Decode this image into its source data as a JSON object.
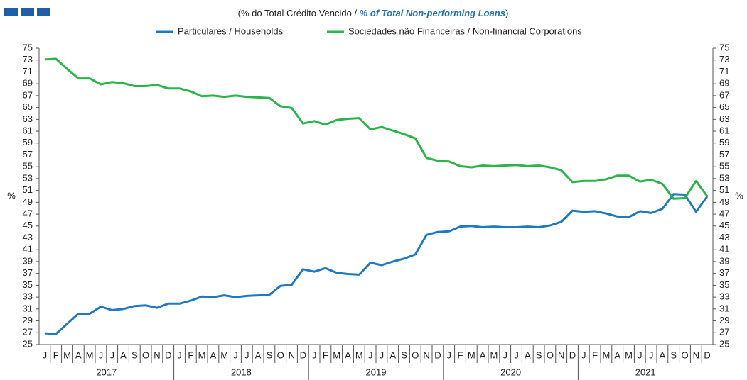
{
  "chart_data": {
    "type": "line",
    "title_parts": [
      "(% do Total  Crédito Vencido / ",
      "% of Total Non-performing Loans",
      ")"
    ],
    "ylabel": "%",
    "y2label": "%",
    "categories": [
      "J",
      "F",
      "M",
      "A",
      "M",
      "J",
      "J",
      "A",
      "S",
      "O",
      "N",
      "D",
      "J",
      "F",
      "M",
      "A",
      "M",
      "J",
      "J",
      "A",
      "S",
      "O",
      "N",
      "D",
      "J",
      "F",
      "M",
      "A",
      "M",
      "J",
      "J",
      "A",
      "S",
      "O",
      "N",
      "D",
      "J",
      "F",
      "M",
      "A",
      "M",
      "J",
      "J",
      "A",
      "S",
      "O",
      "N",
      "D",
      "J",
      "F",
      "M",
      "A",
      "M",
      "J",
      "J",
      "A",
      "S",
      "O",
      "N",
      "D"
    ],
    "years": [
      "2017",
      "2018",
      "2019",
      "2020",
      "2021"
    ],
    "series": [
      {
        "name": "Particulares / Households",
        "color": "#1f78c1",
        "values": [
          26.9,
          26.8,
          28.5,
          30.2,
          30.2,
          31.4,
          30.8,
          31.0,
          31.5,
          31.6,
          31.2,
          31.9,
          31.9,
          32.4,
          33.1,
          33.0,
          33.3,
          33.0,
          33.2,
          33.3,
          33.4,
          34.9,
          35.1,
          37.7,
          37.3,
          37.9,
          37.1,
          36.9,
          36.8,
          38.8,
          38.4,
          39.0,
          39.5,
          40.2,
          43.5,
          44.0,
          44.1,
          44.9,
          45.0,
          44.8,
          44.9,
          44.8,
          44.8,
          44.9,
          44.8,
          45.1,
          45.7,
          47.6,
          47.4,
          47.5,
          47.1,
          46.6,
          46.5,
          47.5,
          47.2,
          47.9,
          50.4,
          50.3,
          47.4,
          50.0
        ]
      },
      {
        "name": "Sociedades não Financeiras / Non-financial Corporations",
        "color": "#2cb34a",
        "values": [
          73.1,
          73.2,
          71.5,
          69.9,
          69.9,
          68.9,
          69.3,
          69.1,
          68.6,
          68.6,
          68.8,
          68.2,
          68.2,
          67.7,
          66.9,
          67.0,
          66.8,
          67.0,
          66.8,
          66.7,
          66.6,
          65.2,
          64.9,
          62.3,
          62.7,
          62.1,
          62.9,
          63.1,
          63.2,
          61.3,
          61.7,
          61.1,
          60.5,
          59.8,
          56.5,
          56.0,
          55.9,
          55.1,
          54.9,
          55.2,
          55.1,
          55.2,
          55.3,
          55.1,
          55.2,
          54.9,
          54.4,
          52.4,
          52.6,
          52.6,
          52.9,
          53.5,
          53.5,
          52.5,
          52.8,
          52.1,
          49.6,
          49.7,
          52.6,
          50.0
        ]
      }
    ],
    "ylim": [
      25,
      75
    ],
    "yticks": [
      25,
      27,
      29,
      31,
      33,
      35,
      37,
      39,
      41,
      43,
      45,
      47,
      49,
      51,
      53,
      55,
      57,
      59,
      61,
      63,
      65,
      67,
      69,
      71,
      73,
      75
    ],
    "y2lim": [
      25,
      75
    ],
    "y2ticks": [
      25,
      27,
      29,
      31,
      33,
      35,
      37,
      39,
      41,
      43,
      45,
      47,
      49,
      51,
      53,
      55,
      57,
      59,
      61,
      63,
      65,
      67,
      69,
      71,
      73,
      75
    ]
  }
}
